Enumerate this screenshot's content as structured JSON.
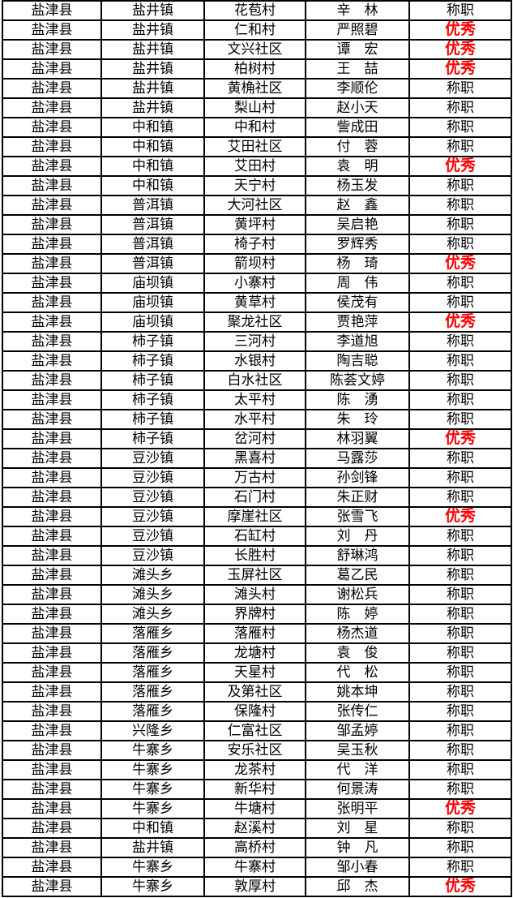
{
  "colors": {
    "excellent_text": "#FF0000",
    "normal_text": "#000000",
    "border": "#000000",
    "background": "#FFFFFF"
  },
  "rating_labels": {
    "excellent": "优秀",
    "competent": "称职"
  },
  "table": {
    "columns": [
      "county",
      "town",
      "village",
      "name",
      "rating"
    ],
    "rows": [
      [
        "盐津县",
        "盐井镇",
        "花苞村",
        "辛　林",
        "称职"
      ],
      [
        "盐津县",
        "盐井镇",
        "仁和村",
        "严照碧",
        "优秀"
      ],
      [
        "盐津县",
        "盐井镇",
        "文兴社区",
        "谭　宏",
        "优秀"
      ],
      [
        "盐津县",
        "盐井镇",
        "柏树村",
        "王　喆",
        "优秀"
      ],
      [
        "盐津县",
        "盐井镇",
        "黄桷社区",
        "李顺伦",
        "称职"
      ],
      [
        "盐津县",
        "盐井镇",
        "梨山村",
        "赵小天",
        "称职"
      ],
      [
        "盐津县",
        "中和镇",
        "中和村",
        "訾成田",
        "称职"
      ],
      [
        "盐津县",
        "中和镇",
        "艾田社区",
        "付　蓉",
        "称职"
      ],
      [
        "盐津县",
        "中和镇",
        "艾田村",
        "袁　明",
        "优秀"
      ],
      [
        "盐津县",
        "中和镇",
        "天宁村",
        "杨玉发",
        "称职"
      ],
      [
        "盐津县",
        "普洱镇",
        "大河社区",
        "赵　鑫",
        "称职"
      ],
      [
        "盐津县",
        "普洱镇",
        "黄坪村",
        "吴启艳",
        "称职"
      ],
      [
        "盐津县",
        "普洱镇",
        "椅子村",
        "罗辉秀",
        "称职"
      ],
      [
        "盐津县",
        "普洱镇",
        "箭坝村",
        "杨　琦",
        "优秀"
      ],
      [
        "盐津县",
        "庙坝镇",
        "小寨村",
        "周　伟",
        "称职"
      ],
      [
        "盐津县",
        "庙坝镇",
        "黄草村",
        "侯茂有",
        "称职"
      ],
      [
        "盐津县",
        "庙坝镇",
        "聚龙社区",
        "贾艳萍",
        "优秀"
      ],
      [
        "盐津县",
        "柿子镇",
        "三河村",
        "李道旭",
        "称职"
      ],
      [
        "盐津县",
        "柿子镇",
        "水银村",
        "陶吉聪",
        "称职"
      ],
      [
        "盐津县",
        "柿子镇",
        "白水社区",
        "陈荟文婷",
        "称职"
      ],
      [
        "盐津县",
        "柿子镇",
        "太平村",
        "陈　湧",
        "称职"
      ],
      [
        "盐津县",
        "柿子镇",
        "水平村",
        "朱　玲",
        "称职"
      ],
      [
        "盐津县",
        "柿子镇",
        "岔河村",
        "林羽翼",
        "优秀"
      ],
      [
        "盐津县",
        "豆沙镇",
        "黑喜村",
        "马露莎",
        "称职"
      ],
      [
        "盐津县",
        "豆沙镇",
        "万古村",
        "孙剑锋",
        "称职"
      ],
      [
        "盐津县",
        "豆沙镇",
        "石门村",
        "朱正财",
        "称职"
      ],
      [
        "盐津县",
        "豆沙镇",
        "摩崖社区",
        "张雪飞",
        "优秀"
      ],
      [
        "盐津县",
        "豆沙镇",
        "石缸村",
        "刘　丹",
        "称职"
      ],
      [
        "盐津县",
        "豆沙镇",
        "长胜村",
        "舒琳鸿",
        "称职"
      ],
      [
        "盐津县",
        "滩头乡",
        "玉屏社区",
        "葛乙民",
        "称职"
      ],
      [
        "盐津县",
        "滩头乡",
        "滩头村",
        "谢松兵",
        "称职"
      ],
      [
        "盐津县",
        "滩头乡",
        "界牌村",
        "陈　婷",
        "称职"
      ],
      [
        "盐津县",
        "落雁乡",
        "落雁村",
        "杨杰道",
        "称职"
      ],
      [
        "盐津县",
        "落雁乡",
        "龙塘村",
        "袁　俊",
        "称职"
      ],
      [
        "盐津县",
        "落雁乡",
        "天星村",
        "代　松",
        "称职"
      ],
      [
        "盐津县",
        "落雁乡",
        "及第社区",
        "姚本坤",
        "称职"
      ],
      [
        "盐津县",
        "落雁乡",
        "保隆村",
        "张传仁",
        "称职"
      ],
      [
        "盐津县",
        "兴隆乡",
        "仁富社区",
        "邹孟婷",
        "称职"
      ],
      [
        "盐津县",
        "牛寨乡",
        "安乐社区",
        "吴玉秋",
        "称职"
      ],
      [
        "盐津县",
        "牛寨乡",
        "龙茶村",
        "代　洋",
        "称职"
      ],
      [
        "盐津县",
        "牛寨乡",
        "新华村",
        "何景涛",
        "称职"
      ],
      [
        "盐津县",
        "牛寨乡",
        "牛塘村",
        "张明平",
        "优秀"
      ],
      [
        "盐津县",
        "中和镇",
        "赵溪村",
        "刘　星",
        "称职"
      ],
      [
        "盐津县",
        "盐井镇",
        "高桥村",
        "钟　凡",
        "称职"
      ],
      [
        "盐津县",
        "牛寨乡",
        "牛寨村",
        "邹小春",
        "称职"
      ],
      [
        "盐津县",
        "牛寨乡",
        "敦厚村",
        "邱　杰",
        "优秀"
      ]
    ]
  }
}
